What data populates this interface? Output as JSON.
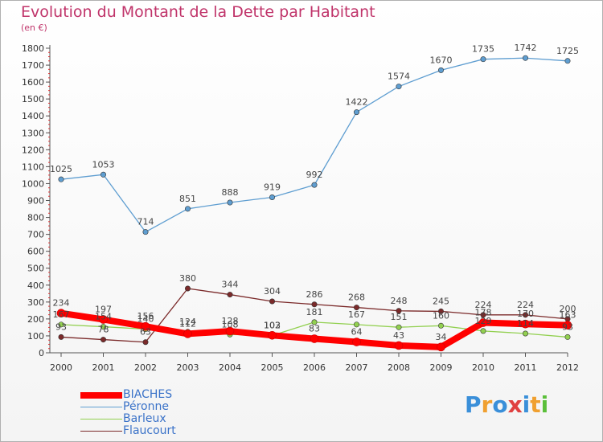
{
  "title": "Evolution du Montant de la Dette par Habitant",
  "subtitle": "(en €)",
  "logo_text": "Proxiti",
  "chart_data": {
    "type": "line",
    "title": "Evolution du Montant de la Dette par Habitant",
    "subtitle": "(en €)",
    "x": [
      "2000",
      "2001",
      "2002",
      "2003",
      "2004",
      "2005",
      "2006",
      "2007",
      "2008",
      "2009",
      "2010",
      "2011",
      "2012"
    ],
    "ylim": [
      0,
      1800
    ],
    "yticks": [
      0,
      100,
      200,
      300,
      400,
      500,
      600,
      700,
      800,
      900,
      1000,
      1100,
      1200,
      1300,
      1400,
      1500,
      1600,
      1700,
      1800
    ],
    "grid": false,
    "legend_position": "bottom-left",
    "series": [
      {
        "name": "BIACHES",
        "color": "#ff0000",
        "values": [
          234,
          197,
          156,
          112,
          128,
          103,
          83,
          64,
          43,
          34,
          178,
          170,
          163
        ],
        "labels": [
          "234",
          "197",
          "156",
          "112",
          "128",
          "103",
          "83",
          "64",
          "43",
          "34",
          "178",
          "170",
          "163"
        ]
      },
      {
        "name": "Péronne",
        "color": "#5f9ed1",
        "values": [
          1025,
          1053,
          714,
          851,
          888,
          919,
          992,
          1422,
          1574,
          1670,
          1735,
          1742,
          1725
        ],
        "labels": [
          "1025",
          "1053",
          "714",
          "851",
          "888",
          "919",
          "992",
          "1422",
          "1574",
          "1670",
          "1735",
          "1742",
          "1725"
        ]
      },
      {
        "name": "Barleux",
        "color": "#92d050",
        "values": [
          167,
          154,
          140,
          124,
          108,
          102,
          181,
          167,
          151,
          160,
          129,
          114,
          93
        ],
        "labels": [
          "167",
          "154",
          "140",
          "124",
          "108",
          "102",
          "181",
          "167",
          "151",
          "160",
          "129",
          "114",
          "93"
        ]
      },
      {
        "name": "Flaucourt",
        "color": "#7b2a2a",
        "values": [
          93,
          78,
          63,
          380,
          344,
          304,
          286,
          268,
          248,
          245,
          224,
          224,
          200
        ],
        "labels": [
          "93",
          "78",
          "63",
          "380",
          "344",
          "304",
          "286",
          "268",
          "248",
          "245",
          "224",
          "224",
          "200"
        ]
      }
    ]
  }
}
